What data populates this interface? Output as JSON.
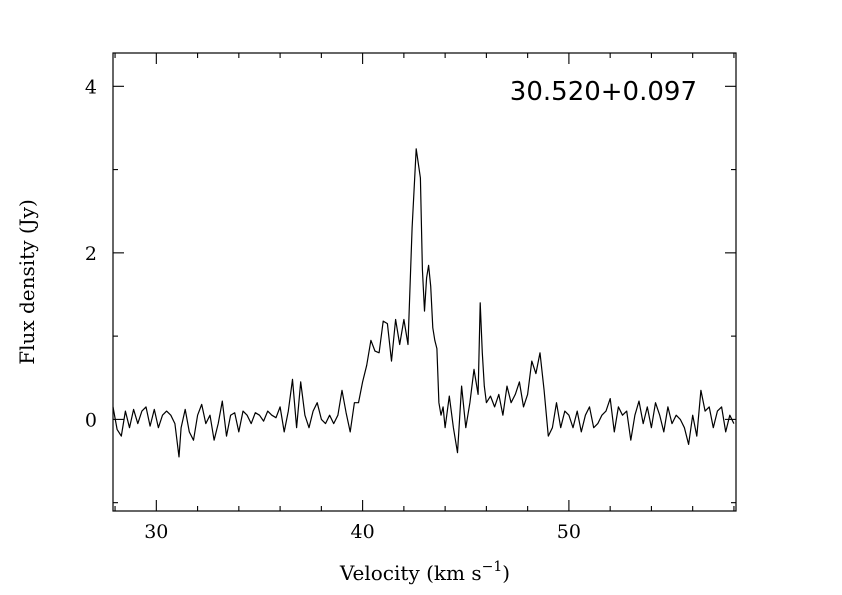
{
  "chart_data": {
    "type": "line",
    "title": "",
    "annotation": "30.520+0.097",
    "xlabel": "Velocity (km s",
    "xlabel_sup": "−1",
    "xlabel_close": ")",
    "ylabel": "Flux density (Jy)",
    "xlim": [
      27.9,
      58.1
    ],
    "ylim": [
      -1.1,
      4.4
    ],
    "xticks_major": [
      30,
      40,
      50
    ],
    "xtick_labels": [
      "30",
      "40",
      "50"
    ],
    "yticks_major": [
      0,
      2,
      4
    ],
    "ytick_labels": [
      "0",
      "2",
      "4"
    ],
    "grid": false,
    "series": [
      {
        "color": "#000000",
        "x": [
          27.9,
          28.1,
          28.3,
          28.5,
          28.7,
          28.9,
          29.1,
          29.3,
          29.5,
          29.7,
          29.9,
          30.1,
          30.3,
          30.5,
          30.7,
          30.9,
          31.1,
          31.2,
          31.4,
          31.6,
          31.8,
          32.0,
          32.2,
          32.4,
          32.6,
          32.8,
          33.0,
          33.2,
          33.4,
          33.6,
          33.8,
          34.0,
          34.2,
          34.4,
          34.6,
          34.8,
          35.0,
          35.2,
          35.4,
          35.6,
          35.8,
          36.0,
          36.2,
          36.4,
          36.6,
          36.8,
          37.0,
          37.2,
          37.4,
          37.6,
          37.8,
          38.0,
          38.2,
          38.4,
          38.6,
          38.8,
          39.0,
          39.2,
          39.4,
          39.6,
          39.8,
          40.0,
          40.2,
          40.4,
          40.6,
          40.8,
          41.0,
          41.2,
          41.4,
          41.6,
          41.8,
          42.0,
          42.2,
          42.4,
          42.6,
          42.8,
          42.9,
          43.0,
          43.1,
          43.2,
          43.3,
          43.4,
          43.5,
          43.6,
          43.7,
          43.8,
          43.9,
          44.0,
          44.2,
          44.4,
          44.6,
          44.8,
          45.0,
          45.2,
          45.4,
          45.6,
          45.7,
          45.8,
          45.9,
          46.0,
          46.2,
          46.4,
          46.6,
          46.8,
          47.0,
          47.2,
          47.4,
          47.6,
          47.8,
          48.0,
          48.2,
          48.4,
          48.6,
          48.8,
          49.0,
          49.2,
          49.4,
          49.6,
          49.8,
          50.0,
          50.2,
          50.4,
          50.6,
          50.8,
          51.0,
          51.2,
          51.4,
          51.6,
          51.8,
          52.0,
          52.2,
          52.4,
          52.6,
          52.8,
          53.0,
          53.2,
          53.4,
          53.6,
          53.8,
          54.0,
          54.2,
          54.4,
          54.6,
          54.8,
          55.0,
          55.2,
          55.4,
          55.6,
          55.8,
          56.0,
          56.2,
          56.4,
          56.6,
          56.8,
          57.0,
          57.2,
          57.4,
          57.6,
          57.8,
          58.0
        ],
        "y": [
          0.15,
          -0.12,
          -0.2,
          0.1,
          -0.1,
          0.12,
          -0.05,
          0.1,
          0.15,
          -0.08,
          0.12,
          -0.1,
          0.05,
          0.1,
          0.05,
          -0.05,
          -0.45,
          -0.1,
          0.12,
          -0.15,
          -0.25,
          0.05,
          0.18,
          -0.05,
          0.05,
          -0.25,
          -0.05,
          0.22,
          -0.2,
          0.05,
          0.08,
          -0.15,
          0.1,
          0.05,
          -0.05,
          0.08,
          0.05,
          -0.02,
          0.1,
          0.05,
          0.02,
          0.15,
          -0.15,
          0.1,
          0.48,
          -0.1,
          0.45,
          0.05,
          -0.1,
          0.1,
          0.2,
          0.0,
          -0.05,
          0.05,
          -0.05,
          0.05,
          0.35,
          0.08,
          -0.15,
          0.2,
          0.2,
          0.45,
          0.65,
          0.95,
          0.82,
          0.8,
          1.18,
          1.15,
          0.7,
          1.2,
          0.9,
          1.2,
          0.9,
          2.3,
          3.25,
          2.9,
          1.8,
          1.3,
          1.7,
          1.85,
          1.6,
          1.1,
          0.95,
          0.85,
          0.2,
          0.05,
          0.15,
          -0.1,
          0.28,
          -0.1,
          -0.4,
          0.4,
          -0.1,
          0.2,
          0.6,
          0.3,
          1.4,
          0.8,
          0.4,
          0.2,
          0.28,
          0.15,
          0.3,
          0.05,
          0.4,
          0.2,
          0.3,
          0.45,
          0.15,
          0.3,
          0.7,
          0.55,
          0.8,
          0.35,
          -0.2,
          -0.1,
          0.2,
          -0.1,
          0.1,
          0.05,
          -0.1,
          0.1,
          -0.15,
          0.05,
          0.15,
          -0.1,
          -0.05,
          0.05,
          0.1,
          0.25,
          -0.15,
          0.15,
          0.05,
          0.1,
          -0.25,
          0.05,
          0.22,
          -0.05,
          0.15,
          -0.1,
          0.2,
          0.05,
          -0.15,
          0.15,
          -0.05,
          0.05,
          0.0,
          -0.1,
          -0.3,
          0.05,
          -0.2,
          0.35,
          0.1,
          0.15,
          -0.1,
          0.1,
          0.15,
          -0.15,
          0.05,
          -0.05
        ]
      }
    ]
  }
}
